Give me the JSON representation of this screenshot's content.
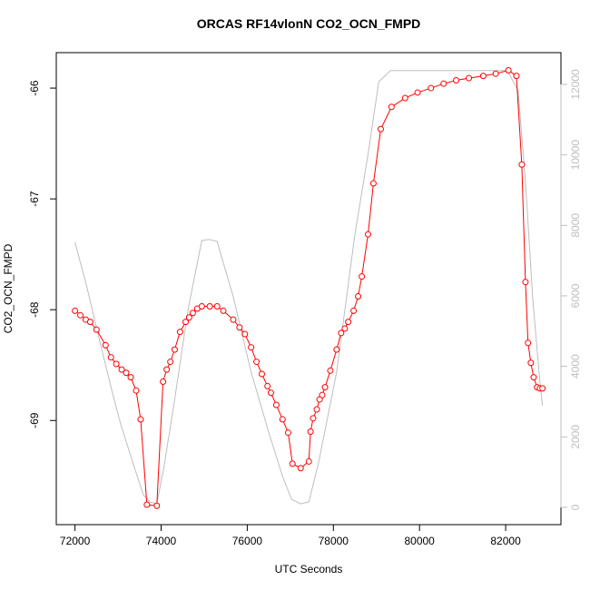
{
  "chart_data": {
    "type": "line",
    "title": "ORCAS RF14vlonN CO2_OCN_FMPD",
    "x_label": "UTC Seconds",
    "y_label": "CO2_OCN_FMPD",
    "xlim": [
      71566,
      83284
    ],
    "ylim": [
      -69.94,
      -65.68
    ],
    "y2lim": [
      -490,
      12900
    ],
    "xticks": [
      72000,
      74000,
      76000,
      78000,
      80000,
      82000
    ],
    "yticks": [
      -69,
      -68,
      -67,
      -66
    ],
    "y2ticks": [
      0,
      2000,
      4000,
      6000,
      8000,
      10000,
      12000
    ],
    "series": [
      {
        "color": "#ff0000",
        "marker": "circle",
        "x": [
          72000,
          72125,
          72250,
          72355,
          72500,
          72710,
          72835,
          72960,
          73085,
          73190,
          73295,
          73420,
          73525,
          73670,
          73900,
          74045,
          74130,
          74215,
          74315,
          74440,
          74570,
          74650,
          74735,
          74840,
          74945,
          75130,
          75300,
          75445,
          75675,
          75820,
          75945,
          76090,
          76215,
          76340,
          76470,
          76550,
          76675,
          76820,
          76950,
          77050,
          77240,
          77430,
          77470,
          77530,
          77615,
          77680,
          77740,
          77805,
          77930,
          78075,
          78180,
          78265,
          78345,
          78470,
          78575,
          78660,
          78805,
          78930,
          79100,
          79350,
          79665,
          79955,
          80265,
          80560,
          80850,
          81145,
          81480,
          81770,
          82065,
          82250,
          82375,
          82460,
          82520,
          82585,
          82650,
          82730,
          82795,
          82855
        ],
        "values": [
          -68.01,
          -68.05,
          -68.09,
          -68.11,
          -68.18,
          -68.32,
          -68.43,
          -68.49,
          -68.54,
          -68.57,
          -68.61,
          -68.73,
          -68.99,
          -69.76,
          -69.77,
          -68.65,
          -68.54,
          -68.47,
          -68.36,
          -68.2,
          -68.11,
          -68.07,
          -68.03,
          -67.99,
          -67.97,
          -67.97,
          -67.97,
          -68.01,
          -68.09,
          -68.16,
          -68.22,
          -68.34,
          -68.47,
          -68.58,
          -68.69,
          -68.75,
          -68.86,
          -68.99,
          -69.11,
          -69.39,
          -69.43,
          -69.37,
          -69.1,
          -68.98,
          -68.9,
          -68.81,
          -68.77,
          -68.7,
          -68.55,
          -68.36,
          -68.21,
          -68.17,
          -68.11,
          -68.01,
          -67.88,
          -67.7,
          -67.32,
          -66.86,
          -66.37,
          -66.17,
          -66.09,
          -66.04,
          -66.0,
          -65.96,
          -65.93,
          -65.91,
          -65.89,
          -65.87,
          -65.84,
          -65.89,
          -66.69,
          -67.75,
          -68.3,
          -68.48,
          -68.61,
          -68.7,
          -68.71,
          -68.71
        ]
      },
      {
        "color": "#bebebe",
        "axis": "y2",
        "x": [
          72000,
          72270,
          72545,
          72855,
          73065,
          73380,
          73585,
          73735,
          73900,
          74065,
          74315,
          74630,
          74945,
          75110,
          75300,
          75675,
          76090,
          76510,
          76820,
          77030,
          77240,
          77430,
          77655,
          78075,
          78495,
          78805,
          79055,
          79330,
          82040,
          82290,
          82460,
          82630,
          82775,
          82855
        ],
        "values": [
          7520,
          6285,
          4870,
          3320,
          2345,
          1135,
          360,
          155,
          100,
          1135,
          3065,
          5640,
          7570,
          7600,
          7545,
          5975,
          3835,
          2085,
          875,
          230,
          100,
          155,
          1260,
          3835,
          7700,
          10020,
          12080,
          12390,
          12390,
          11820,
          9245,
          5900,
          3835,
          2885
        ]
      }
    ]
  }
}
